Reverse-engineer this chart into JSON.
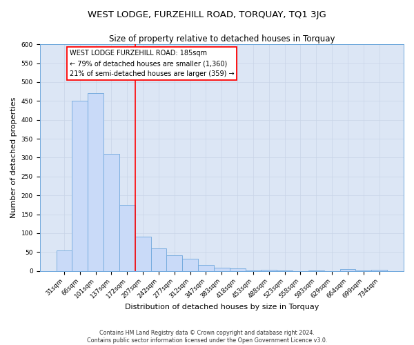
{
  "title": "WEST LODGE, FURZEHILL ROAD, TORQUAY, TQ1 3JG",
  "subtitle": "Size of property relative to detached houses in Torquay",
  "xlabel": "Distribution of detached houses by size in Torquay",
  "ylabel": "Number of detached properties",
  "bin_labels": [
    "31sqm",
    "66sqm",
    "101sqm",
    "137sqm",
    "172sqm",
    "207sqm",
    "242sqm",
    "277sqm",
    "312sqm",
    "347sqm",
    "383sqm",
    "418sqm",
    "453sqm",
    "488sqm",
    "523sqm",
    "558sqm",
    "593sqm",
    "629sqm",
    "664sqm",
    "699sqm",
    "734sqm"
  ],
  "bar_heights": [
    55,
    450,
    470,
    310,
    175,
    90,
    60,
    42,
    33,
    15,
    8,
    7,
    2,
    3,
    1,
    0,
    1,
    0,
    4,
    1,
    3
  ],
  "bar_color": "#c9daf8",
  "bar_edge_color": "#6fa8dc",
  "red_line_index": 4.5,
  "annotation_line1": "WEST LODGE FURZEHILL ROAD: 185sqm",
  "annotation_line2": "← 79% of detached houses are smaller (1,360)",
  "annotation_line3": "21% of semi-detached houses are larger (359) →",
  "annotation_box_color": "#ffffff",
  "annotation_box_edge": "#cc0000",
  "ylim": [
    0,
    600
  ],
  "yticks": [
    0,
    50,
    100,
    150,
    200,
    250,
    300,
    350,
    400,
    450,
    500,
    550,
    600
  ],
  "grid_color": "#c8d4e8",
  "plot_bg_color": "#dce6f5",
  "fig_bg_color": "#ffffff",
  "footer_line1": "Contains HM Land Registry data © Crown copyright and database right 2024.",
  "footer_line2": "Contains public sector information licensed under the Open Government Licence v3.0.",
  "title_fontsize": 9.5,
  "subtitle_fontsize": 8.5,
  "xlabel_fontsize": 8,
  "ylabel_fontsize": 8,
  "tick_fontsize": 6.5,
  "footer_fontsize": 5.8
}
